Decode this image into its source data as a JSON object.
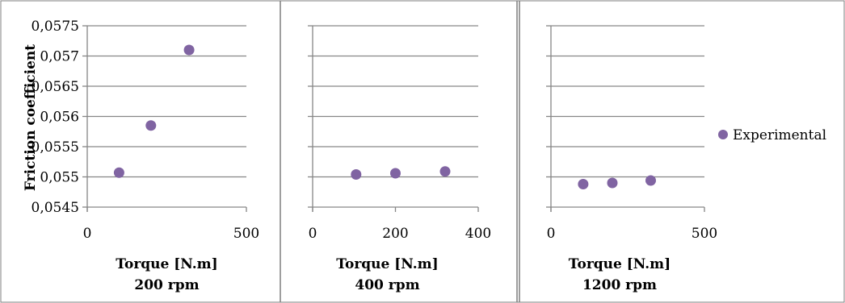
{
  "chart_data": {
    "type": "scatter",
    "ylabel": "Friction coefficient",
    "y_ticks": [
      "0,0545",
      "0,055",
      "0,0555",
      "0,056",
      "0,0565",
      "0,057",
      "0,0575"
    ],
    "ylim": [
      0.0545,
      0.0575
    ],
    "legend": {
      "label": "Experimental",
      "placement": "right"
    },
    "marker_color": "#8064a2",
    "grid": true,
    "panels": [
      {
        "xlabel": "Torque [N.m]",
        "subtitle": "200 rpm",
        "xlim": [
          0,
          500
        ],
        "x_ticks": [
          "0",
          "500"
        ],
        "show_y_ticks": true,
        "series": [
          {
            "name": "Experimental",
            "x": [
              100,
              200,
              320
            ],
            "y": [
              0.05507,
              0.05585,
              0.0571
            ]
          }
        ]
      },
      {
        "xlabel": "Torque [N.m]",
        "subtitle": "400 rpm",
        "xlim": [
          0,
          400
        ],
        "x_ticks": [
          "0",
          "200",
          "400"
        ],
        "show_y_ticks": false,
        "series": [
          {
            "name": "Experimental",
            "x": [
              105,
              200,
              320
            ],
            "y": [
              0.05504,
              0.05506,
              0.05509
            ]
          }
        ]
      },
      {
        "xlabel": "Torque [N.m]",
        "subtitle": "1200 rpm",
        "xlim": [
          0,
          500
        ],
        "x_ticks": [
          "0",
          "500"
        ],
        "show_y_ticks": false,
        "series": [
          {
            "name": "Experimental",
            "x": [
              105,
              200,
              325
            ],
            "y": [
              0.05488,
              0.0549,
              0.05494
            ]
          }
        ]
      }
    ]
  }
}
